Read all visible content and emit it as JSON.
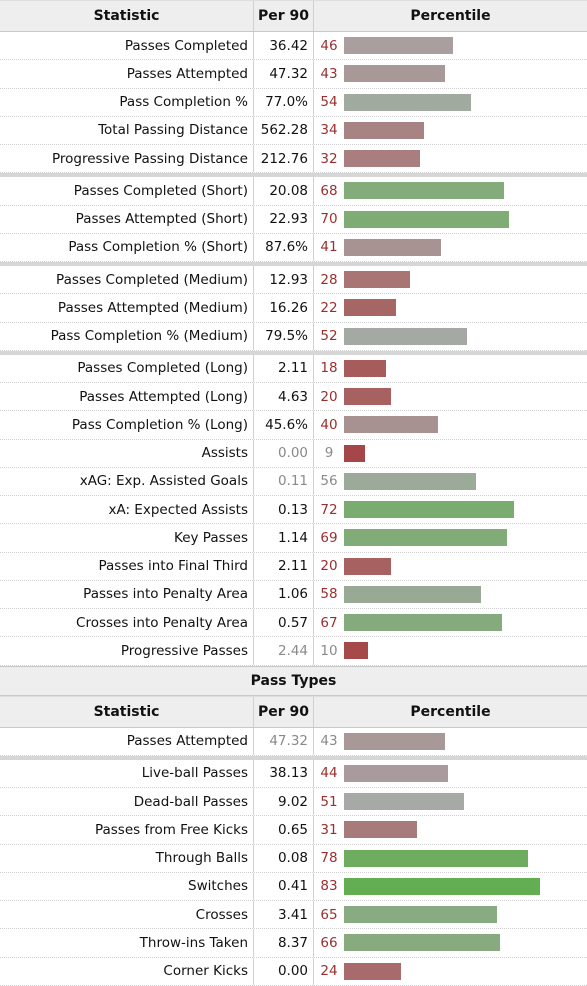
{
  "header": {
    "statistic": "Statistic",
    "per90": "Per 90",
    "percentile": "Percentile"
  },
  "groups": [
    {
      "rows": [
        {
          "stat": "Passes Completed",
          "value": "36.42",
          "pct": "46"
        },
        {
          "stat": "Passes Attempted",
          "value": "47.32",
          "pct": "43"
        },
        {
          "stat": "Pass Completion %",
          "value": "77.0%",
          "pct": "54"
        },
        {
          "stat": "Total Passing Distance",
          "value": "562.28",
          "pct": "34"
        },
        {
          "stat": "Progressive Passing Distance",
          "value": "212.76",
          "pct": "32"
        }
      ]
    },
    {
      "rows": [
        {
          "stat": "Passes Completed (Short)",
          "value": "20.08",
          "pct": "68"
        },
        {
          "stat": "Passes Attempted (Short)",
          "value": "22.93",
          "pct": "70"
        },
        {
          "stat": "Pass Completion % (Short)",
          "value": "87.6%",
          "pct": "41"
        }
      ]
    },
    {
      "rows": [
        {
          "stat": "Passes Completed (Medium)",
          "value": "12.93",
          "pct": "28"
        },
        {
          "stat": "Passes Attempted (Medium)",
          "value": "16.26",
          "pct": "22"
        },
        {
          "stat": "Pass Completion % (Medium)",
          "value": "79.5%",
          "pct": "52"
        }
      ]
    },
    {
      "rows": [
        {
          "stat": "Passes Completed (Long)",
          "value": "2.11",
          "pct": "18"
        },
        {
          "stat": "Passes Attempted (Long)",
          "value": "4.63",
          "pct": "20"
        },
        {
          "stat": "Pass Completion % (Long)",
          "value": "45.6%",
          "pct": "40"
        },
        {
          "stat": "Assists",
          "value": "0.00",
          "pct": "9",
          "muted": true
        },
        {
          "stat": "xAG: Exp. Assisted Goals",
          "value": "0.11",
          "pct": "56",
          "muted": true
        },
        {
          "stat": "xA: Expected Assists",
          "value": "0.13",
          "pct": "72"
        },
        {
          "stat": "Key Passes",
          "value": "1.14",
          "pct": "69"
        },
        {
          "stat": "Passes into Final Third",
          "value": "2.11",
          "pct": "20"
        },
        {
          "stat": "Passes into Penalty Area",
          "value": "1.06",
          "pct": "58"
        },
        {
          "stat": "Crosses into Penalty Area",
          "value": "0.57",
          "pct": "67"
        },
        {
          "stat": "Progressive Passes",
          "value": "2.44",
          "pct": "10",
          "muted": true
        }
      ]
    }
  ],
  "section2_title": "Pass Types",
  "groups2": [
    {
      "rows": [
        {
          "stat": "Passes Attempted",
          "value": "47.32",
          "pct": "43",
          "muted": true
        }
      ]
    },
    {
      "rows": [
        {
          "stat": "Live-ball Passes",
          "value": "38.13",
          "pct": "44"
        },
        {
          "stat": "Dead-ball Passes",
          "value": "9.02",
          "pct": "51"
        },
        {
          "stat": "Passes from Free Kicks",
          "value": "0.65",
          "pct": "31"
        },
        {
          "stat": "Through Balls",
          "value": "0.08",
          "pct": "78"
        },
        {
          "stat": "Switches",
          "value": "0.41",
          "pct": "83"
        },
        {
          "stat": "Crosses",
          "value": "3.41",
          "pct": "65"
        },
        {
          "stat": "Throw-ins Taken",
          "value": "8.37",
          "pct": "66"
        },
        {
          "stat": "Corner Kicks",
          "value": "0.00",
          "pct": "24"
        }
      ]
    }
  ],
  "colors": {
    "low": "#a63d3d",
    "mid": "#a9a9a9",
    "high": "#5fae4e"
  }
}
